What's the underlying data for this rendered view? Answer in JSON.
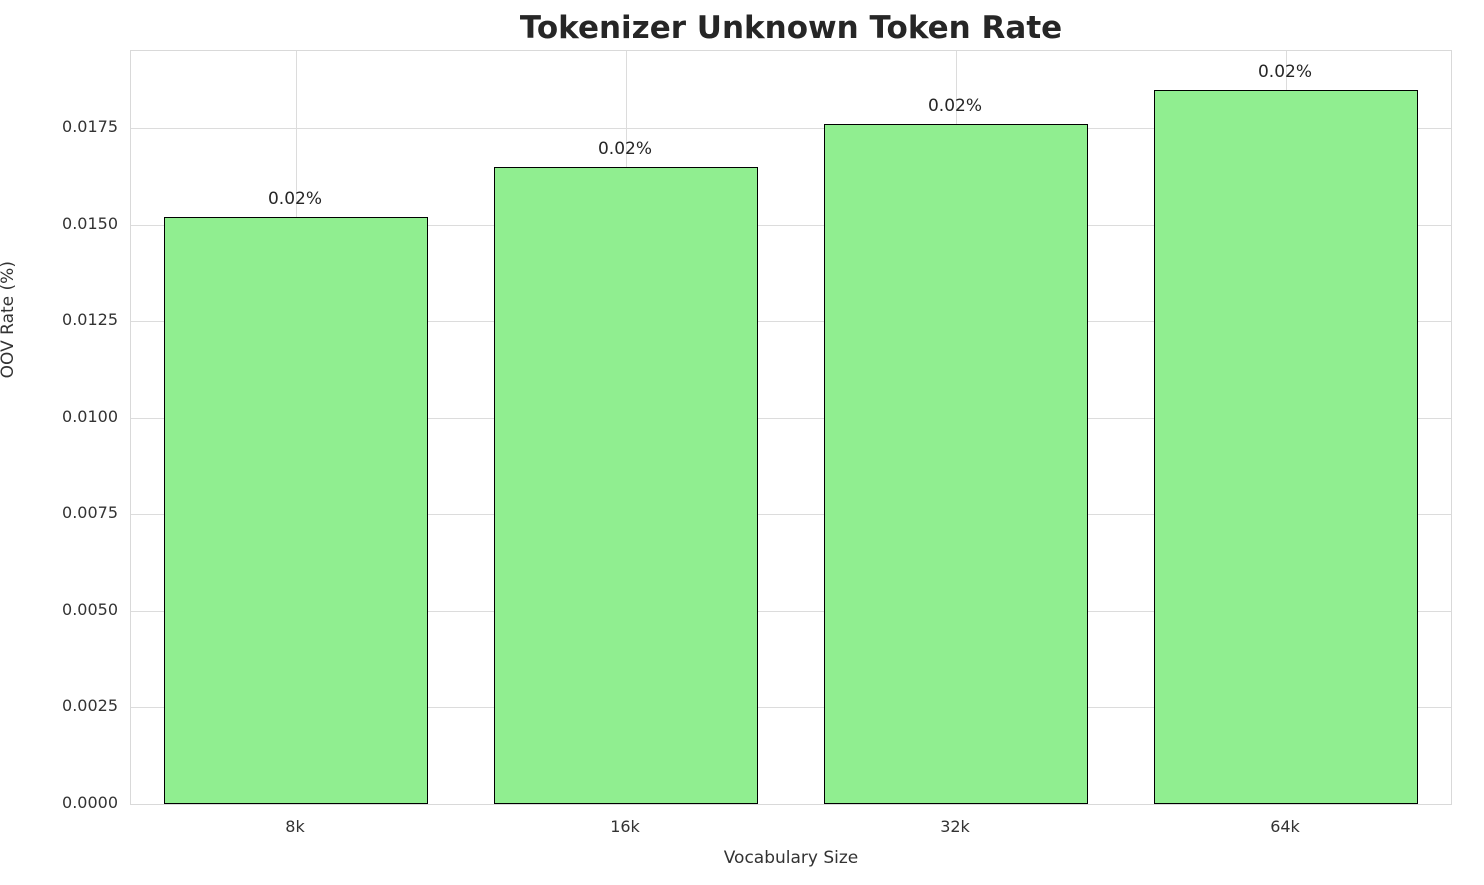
{
  "chart_data": {
    "type": "bar",
    "title": "Tokenizer Unknown Token Rate",
    "xlabel": "Vocabulary Size",
    "ylabel": "OOV Rate (%)",
    "categories": [
      "8k",
      "16k",
      "32k",
      "64k"
    ],
    "values": [
      0.0152,
      0.0165,
      0.0176,
      0.0185
    ],
    "bar_labels": [
      "0.02%",
      "0.02%",
      "0.02%",
      "0.02%"
    ],
    "ylim": [
      0,
      0.0195
    ],
    "yticks": [
      0.0,
      0.0025,
      0.005,
      0.0075,
      0.01,
      0.0125,
      0.015,
      0.0175
    ],
    "ytick_labels": [
      "0.0000",
      "0.0025",
      "0.0050",
      "0.0075",
      "0.0100",
      "0.0125",
      "0.0150",
      "0.0175"
    ],
    "grid": true,
    "legend": "none",
    "bar_color": "#90EE90",
    "bar_edge_color": "#000000",
    "grid_color": "#dcdcdc"
  }
}
